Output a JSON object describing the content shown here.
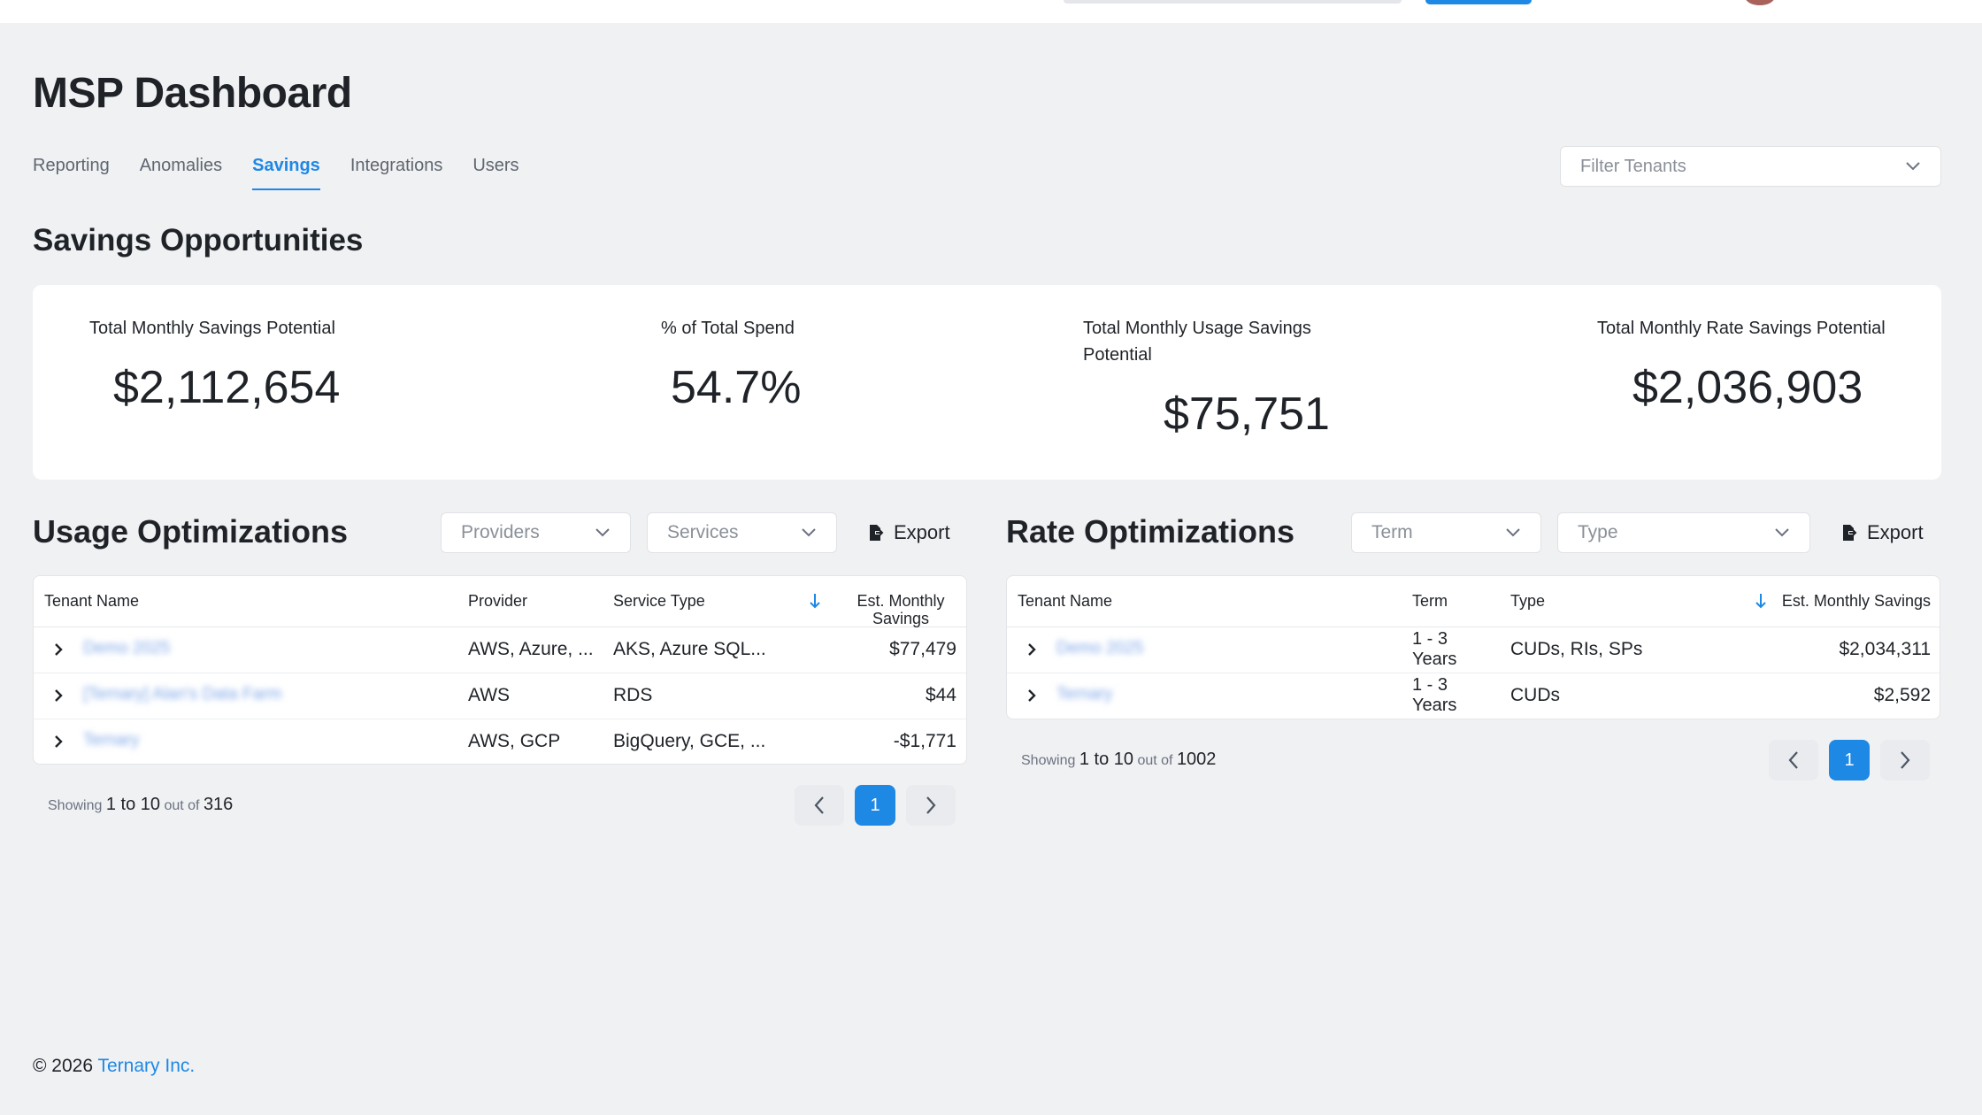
{
  "page": {
    "title": "MSP Dashboard",
    "tabs": [
      {
        "label": "Reporting",
        "active": false
      },
      {
        "label": "Anomalies",
        "active": false
      },
      {
        "label": "Savings",
        "active": true
      },
      {
        "label": "Integrations",
        "active": false
      },
      {
        "label": "Users",
        "active": false
      }
    ],
    "filter_tenants_placeholder": "Filter Tenants"
  },
  "savings": {
    "title": "Savings Opportunities",
    "kpis": [
      {
        "label": "Total Monthly Savings Potential",
        "value": "$2,112,654"
      },
      {
        "label": "% of Total Spend",
        "value": "54.7%"
      },
      {
        "label": "Total Monthly Usage Savings Potential",
        "value": "$75,751"
      },
      {
        "label": "Total Monthly Rate Savings Potential",
        "value": "$2,036,903"
      }
    ]
  },
  "usage": {
    "title": "Usage Optimizations",
    "providers_placeholder": "Providers",
    "services_placeholder": "Services",
    "export_label": "Export",
    "columns": {
      "tenant": "Tenant Name",
      "provider": "Provider",
      "service": "Service Type",
      "savings_line1": "Est. Monthly",
      "savings_line2": "Savings"
    },
    "rows": [
      {
        "tenant": "Demo 2025",
        "provider": "AWS, Azure, ...",
        "service": "AKS, Azure SQL...",
        "savings": "$77,479"
      },
      {
        "tenant": "[Ternary] Alan's Data Farm",
        "provider": "AWS",
        "service": "RDS",
        "savings": "$44"
      },
      {
        "tenant": "Ternary",
        "provider": "AWS, GCP",
        "service": "BigQuery, GCE, ...",
        "savings": "-$1,771"
      }
    ],
    "pagination": {
      "showing": "Showing",
      "range": "1 to 10",
      "out_of": "out of",
      "total": "316",
      "page": "1"
    }
  },
  "rate": {
    "title": "Rate Optimizations",
    "term_placeholder": "Term",
    "type_placeholder": "Type",
    "export_label": "Export",
    "columns": {
      "tenant": "Tenant Name",
      "term": "Term",
      "type": "Type",
      "savings": "Est. Monthly Savings"
    },
    "rows": [
      {
        "tenant": "Demo 2025",
        "term_line1": "1 - 3",
        "term_line2": "Years",
        "type": "CUDs, RIs, SPs",
        "savings": "$2,034,311"
      },
      {
        "tenant": "Ternary",
        "term_line1": "1 - 3",
        "term_line2": "Years",
        "type": "CUDs",
        "savings": "$2,592"
      }
    ],
    "pagination": {
      "showing": "Showing",
      "range": "1 to 10",
      "out_of": "out of",
      "total": "1002",
      "page": "1"
    }
  },
  "footer": {
    "copyright": "© 2026",
    "company": "Ternary Inc."
  },
  "colors": {
    "accent": "#1e88e5",
    "background": "#f0f1f3",
    "card": "#ffffff"
  }
}
